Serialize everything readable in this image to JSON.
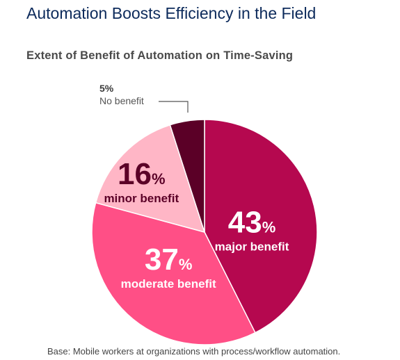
{
  "title": "Automation Boosts Efficiency in the Field",
  "subtitle": "Extent of Benefit of Automation on Time-Saving",
  "footnote": "Base: Mobile workers at organizations with process/workflow automation.",
  "chart_data": {
    "type": "pie",
    "title": "Extent of Benefit of Automation on Time-Saving",
    "slices": [
      {
        "label": "major benefit",
        "value": 43,
        "display": "43",
        "color": "#b5084f"
      },
      {
        "label": "moderate benefit",
        "value": 37,
        "display": "37",
        "color": "#ff4f86"
      },
      {
        "label": "minor benefit",
        "value": 16,
        "display": "16",
        "color": "#ffb6c6"
      },
      {
        "label": "No benefit",
        "value": 5,
        "display": "5%",
        "color": "#5b0027"
      }
    ],
    "unit": "%"
  }
}
